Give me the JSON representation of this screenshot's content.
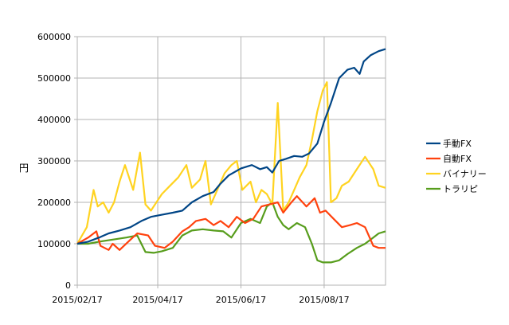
{
  "chart_data": {
    "type": "line",
    "title": "",
    "xlabel": "",
    "ylabel": "円",
    "ylim": [
      0,
      600000
    ],
    "yticks": [
      0,
      100000,
      200000,
      300000,
      400000,
      500000,
      600000
    ],
    "ytick_labels": [
      "0",
      "100000",
      "200000",
      "300000",
      "400000",
      "500000",
      "600000"
    ],
    "xlim": [
      "2015-02-17",
      "2015-10-01"
    ],
    "xticks": [
      "2015-02-17",
      "2015-04-17",
      "2015-06-17",
      "2015-08-17"
    ],
    "xtick_labels": [
      "2015/02/17",
      "2015/04/17",
      "2015/06/17",
      "2015/08/17"
    ],
    "grid": true,
    "legend_position": "right",
    "series": [
      {
        "name": "手動FX",
        "color": "#004586",
        "x": [
          "2015-02-17",
          "2015-02-25",
          "2015-03-05",
          "2015-03-12",
          "2015-03-20",
          "2015-03-28",
          "2015-04-05",
          "2015-04-12",
          "2015-04-20",
          "2015-04-28",
          "2015-05-05",
          "2015-05-12",
          "2015-05-20",
          "2015-05-28",
          "2015-06-02",
          "2015-06-08",
          "2015-06-17",
          "2015-06-25",
          "2015-07-01",
          "2015-07-06",
          "2015-07-10",
          "2015-07-15",
          "2015-07-20",
          "2015-07-26",
          "2015-08-01",
          "2015-08-06",
          "2015-08-12",
          "2015-08-17",
          "2015-08-22",
          "2015-08-28",
          "2015-09-03",
          "2015-09-08",
          "2015-09-12",
          "2015-09-15",
          "2015-09-20",
          "2015-09-26",
          "2015-10-01"
        ],
        "values": [
          100000,
          105000,
          115000,
          125000,
          132000,
          140000,
          155000,
          165000,
          170000,
          175000,
          180000,
          200000,
          215000,
          225000,
          245000,
          265000,
          282000,
          290000,
          280000,
          285000,
          272000,
          300000,
          305000,
          312000,
          310000,
          318000,
          342000,
          395000,
          440000,
          500000,
          520000,
          525000,
          510000,
          540000,
          555000,
          565000,
          570000
        ]
      },
      {
        "name": "自動FX",
        "color": "#ff420e",
        "x": [
          "2015-02-17",
          "2015-02-25",
          "2015-03-03",
          "2015-03-06",
          "2015-03-12",
          "2015-03-15",
          "2015-03-20",
          "2015-03-28",
          "2015-04-02",
          "2015-04-10",
          "2015-04-15",
          "2015-04-22",
          "2015-04-28",
          "2015-05-05",
          "2015-05-10",
          "2015-05-15",
          "2015-05-22",
          "2015-05-28",
          "2015-06-02",
          "2015-06-08",
          "2015-06-14",
          "2015-06-20",
          "2015-06-26",
          "2015-07-02",
          "2015-07-08",
          "2015-07-14",
          "2015-07-18",
          "2015-07-24",
          "2015-07-28",
          "2015-08-04",
          "2015-08-10",
          "2015-08-14",
          "2015-08-18",
          "2015-08-24",
          "2015-08-30",
          "2015-09-05",
          "2015-09-10",
          "2015-09-16",
          "2015-09-22",
          "2015-09-26",
          "2015-10-01"
        ],
        "values": [
          100000,
          115000,
          130000,
          95000,
          85000,
          100000,
          85000,
          110000,
          125000,
          120000,
          95000,
          90000,
          105000,
          130000,
          140000,
          155000,
          160000,
          145000,
          155000,
          140000,
          165000,
          150000,
          160000,
          190000,
          195000,
          200000,
          175000,
          200000,
          215000,
          190000,
          210000,
          175000,
          180000,
          160000,
          140000,
          145000,
          150000,
          140000,
          95000,
          90000,
          90000
        ]
      },
      {
        "name": "バイナリー",
        "color": "#ffd320",
        "x": [
          "2015-02-17",
          "2015-02-24",
          "2015-03-01",
          "2015-03-04",
          "2015-03-08",
          "2015-03-12",
          "2015-03-16",
          "2015-03-20",
          "2015-03-24",
          "2015-03-30",
          "2015-04-04",
          "2015-04-08",
          "2015-04-12",
          "2015-04-20",
          "2015-04-26",
          "2015-05-02",
          "2015-05-08",
          "2015-05-12",
          "2015-05-18",
          "2015-05-22",
          "2015-05-26",
          "2015-06-01",
          "2015-06-05",
          "2015-06-10",
          "2015-06-14",
          "2015-06-18",
          "2015-06-24",
          "2015-06-28",
          "2015-07-02",
          "2015-07-06",
          "2015-07-10",
          "2015-07-14",
          "2015-07-18",
          "2015-07-22",
          "2015-07-26",
          "2015-07-30",
          "2015-08-04",
          "2015-08-08",
          "2015-08-12",
          "2015-08-16",
          "2015-08-19",
          "2015-08-22",
          "2015-08-26",
          "2015-08-30",
          "2015-09-04",
          "2015-09-10",
          "2015-09-16",
          "2015-09-22",
          "2015-09-26",
          "2015-10-01"
        ],
        "values": [
          100000,
          140000,
          230000,
          190000,
          200000,
          175000,
          200000,
          250000,
          290000,
          230000,
          320000,
          195000,
          180000,
          220000,
          240000,
          260000,
          290000,
          235000,
          255000,
          300000,
          195000,
          240000,
          270000,
          290000,
          300000,
          230000,
          250000,
          200000,
          230000,
          220000,
          195000,
          440000,
          180000,
          200000,
          230000,
          260000,
          290000,
          350000,
          420000,
          470000,
          490000,
          200000,
          210000,
          240000,
          250000,
          280000,
          310000,
          280000,
          240000,
          235000
        ]
      },
      {
        "name": "トラリピ",
        "color": "#579d1c",
        "x": [
          "2015-02-17",
          "2015-02-25",
          "2015-03-05",
          "2015-03-15",
          "2015-03-25",
          "2015-04-02",
          "2015-04-08",
          "2015-04-14",
          "2015-04-20",
          "2015-04-28",
          "2015-05-05",
          "2015-05-12",
          "2015-05-20",
          "2015-05-28",
          "2015-06-04",
          "2015-06-10",
          "2015-06-17",
          "2015-06-24",
          "2015-07-01",
          "2015-07-06",
          "2015-07-10",
          "2015-07-14",
          "2015-07-18",
          "2015-07-22",
          "2015-07-28",
          "2015-08-03",
          "2015-08-08",
          "2015-08-12",
          "2015-08-16",
          "2015-08-22",
          "2015-08-28",
          "2015-09-03",
          "2015-09-10",
          "2015-09-16",
          "2015-09-22",
          "2015-09-26",
          "2015-10-01"
        ],
        "values": [
          100000,
          100000,
          105000,
          110000,
          115000,
          120000,
          80000,
          78000,
          82000,
          90000,
          120000,
          132000,
          135000,
          132000,
          130000,
          115000,
          150000,
          160000,
          150000,
          190000,
          200000,
          165000,
          145000,
          135000,
          150000,
          140000,
          100000,
          60000,
          55000,
          55000,
          60000,
          75000,
          90000,
          100000,
          115000,
          125000,
          130000
        ]
      }
    ]
  }
}
